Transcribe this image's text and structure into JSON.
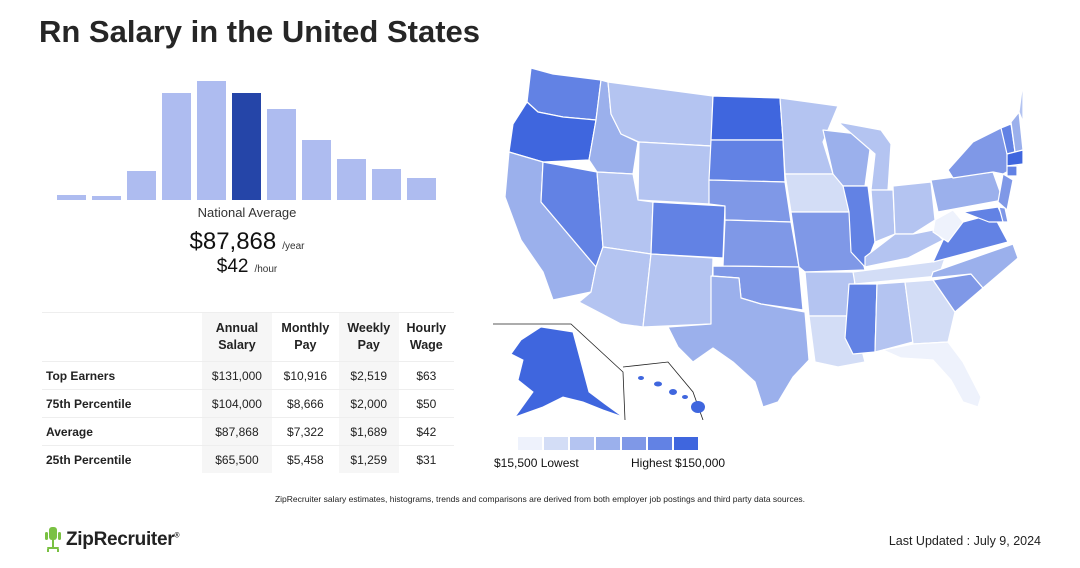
{
  "page": {
    "title": "Rn Salary in the United States"
  },
  "histogram": {
    "bars": [
      0.04,
      0.03,
      0.23,
      0.86,
      0.96,
      0.86,
      0.73,
      0.48,
      0.33,
      0.25,
      0.18
    ],
    "selected_index": 5,
    "label": "National Average"
  },
  "national_average": {
    "annual": "$87,868",
    "annual_unit": "/year",
    "hourly": "$42",
    "hourly_unit": "/hour"
  },
  "table": {
    "headers": [
      [
        "Annual",
        "Salary"
      ],
      [
        "Monthly",
        "Pay"
      ],
      [
        "Weekly",
        "Pay"
      ],
      [
        "Hourly",
        "Wage"
      ]
    ],
    "rows": [
      {
        "label": "Top Earners",
        "values": [
          "$131,000",
          "$10,916",
          "$2,519",
          "$63"
        ]
      },
      {
        "label": "75th Percentile",
        "values": [
          "$104,000",
          "$8,666",
          "$2,000",
          "$50"
        ]
      },
      {
        "label": "Average",
        "values": [
          "$87,868",
          "$7,322",
          "$1,689",
          "$42"
        ]
      },
      {
        "label": "25th Percentile",
        "values": [
          "$65,500",
          "$5,458",
          "$1,259",
          "$31"
        ]
      }
    ]
  },
  "map": {
    "colors": {
      "c1": "#eef2fc",
      "c2": "#d3ddf6",
      "c3": "#b4c4f1",
      "c4": "#9bb0ec",
      "c5": "#7f98e7",
      "c6": "#6282e4",
      "c7": "#3f66de"
    }
  },
  "legend": {
    "swatches": [
      "#eef2fc",
      "#d3ddf6",
      "#b4c4f1",
      "#9bb0ec",
      "#7f98e7",
      "#6282e4",
      "#3f66de"
    ],
    "low": "$15,500 Lowest",
    "high": "Highest $150,000"
  },
  "footnote": "ZipRecruiter salary estimates, histograms, trends and comparisons are derived from both employer job postings and third party data sources.",
  "brand": {
    "name": "ZipRecruiter",
    "tm": "®",
    "logo_color": "#7ac143"
  },
  "last_updated": "Last Updated : July 9, 2024"
}
